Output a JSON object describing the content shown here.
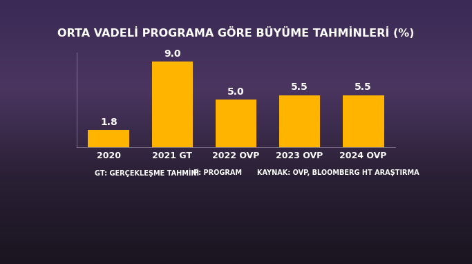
{
  "chart_data": {
    "type": "bar",
    "title": "ORTA VADELİ PROGRAMA GÖRE BÜYÜME TAHMİNLERİ (%)",
    "categories": [
      "2020",
      "2021 GT",
      "2022 OVP",
      "2023 OVP",
      "2024 OVP"
    ],
    "values": [
      1.8,
      9.0,
      5.0,
      5.5,
      5.5
    ],
    "value_labels": [
      "1.8",
      "9.0",
      "5.0",
      "5.5",
      "5.5"
    ],
    "data_labels": true,
    "color": "#ffb400",
    "ylim": [
      0,
      10
    ],
    "yticks": [],
    "tick_labels": "x",
    "grid": false,
    "annotations": [
      "GT: GERÇEKLEŞME TAHMİNİ",
      "P: PROGRAM",
      "KAYNAK: OVP, BLOOMBERG HT ARAŞTIRMA"
    ]
  }
}
